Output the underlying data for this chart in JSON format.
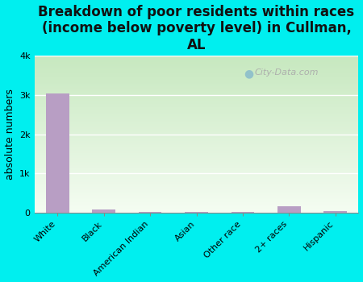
{
  "categories": [
    "White",
    "Black",
    "American Indian",
    "Asian",
    "Other race",
    "2+ races",
    "Hispanic"
  ],
  "values": [
    3050,
    75,
    15,
    5,
    5,
    155,
    35
  ],
  "bar_color": "#b89ec4",
  "background_color": "#00efef",
  "plot_bg_top": "#c8e6c0",
  "plot_bg_bottom": "#f0f8ee",
  "title": "Breakdown of poor residents within races\n(income below poverty level) in Cullman,\nAL",
  "ylabel": "absolute numbers",
  "ylim": [
    0,
    4000
  ],
  "yticks": [
    0,
    1000,
    2000,
    3000,
    4000
  ],
  "ytick_labels": [
    "0",
    "1k",
    "2k",
    "3k",
    "4k"
  ],
  "watermark": "City-Data.com",
  "title_fontsize": 12,
  "ylabel_fontsize": 9,
  "tick_fontsize": 8
}
